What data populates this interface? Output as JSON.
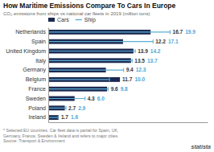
{
  "chart_data": {
    "type": "bar",
    "orientation": "horizontal",
    "title": "How Maritime Emissions Compare To Cars In Europe",
    "subtitle": "CO₂ emissions from ships vs national car fleets in 2019 (million tons)",
    "categories": [
      "Netherlands",
      "Spain",
      "United Kingdom",
      "Italy",
      "Germany",
      "Belgium",
      "France",
      "Sweden",
      "Poland",
      "Ireland"
    ],
    "series": [
      {
        "name": "Cars",
        "type": "bar",
        "color": "#1c2951",
        "values": [
          16.7,
          12.2,
          13.9,
          13.5,
          9.4,
          11.7,
          9.6,
          4.3,
          2.7,
          1.7
        ]
      },
      {
        "name": "Ship",
        "type": "line",
        "color": "#5badd4",
        "values": [
          19.9,
          17.1,
          14.2,
          13.7,
          12.3,
          10.0,
          9.8,
          6.0,
          2.9,
          1.6
        ]
      }
    ],
    "xlim": [
      0,
      26
    ],
    "tick_labels": "y",
    "data_labels": true,
    "legend": "top",
    "grid": false,
    "annotations": [
      "* Selected EU countries. Car fleet data is partial for Spain, UK,",
      "Germany, France, Sweden & Ireland and refers to major cities.",
      "Source: Transport & Environment",
      "statista"
    ]
  }
}
